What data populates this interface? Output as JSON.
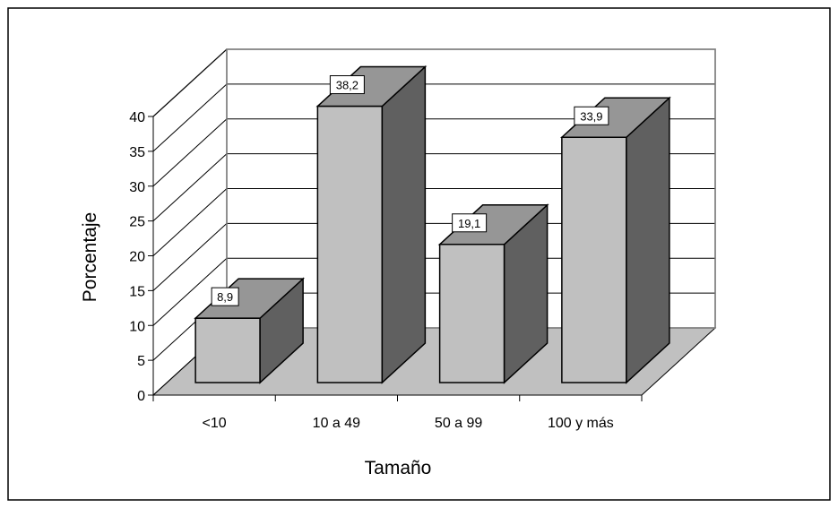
{
  "chart_data": {
    "type": "bar",
    "categories": [
      "<10",
      "10 a 49",
      "50 a 99",
      "100 y más"
    ],
    "values": [
      8.9,
      38.2,
      19.1,
      33.9
    ],
    "data_labels": [
      "8,9",
      "38,2",
      "19,1",
      "33,9"
    ],
    "title": "",
    "xlabel": "Tamaño",
    "ylabel": "Porcentaje",
    "ylim": [
      0,
      40
    ],
    "yticks": [
      0,
      5,
      10,
      15,
      20,
      25,
      30,
      35,
      40
    ],
    "grid": true,
    "legend": "none",
    "style": "3d-column"
  },
  "colors": {
    "bar_front": "#c0c0c0",
    "bar_top": "#969696",
    "bar_side": "#606060",
    "floor": "#c0c0c0",
    "gridline": "#000000",
    "back_wall_border": "#808080"
  }
}
